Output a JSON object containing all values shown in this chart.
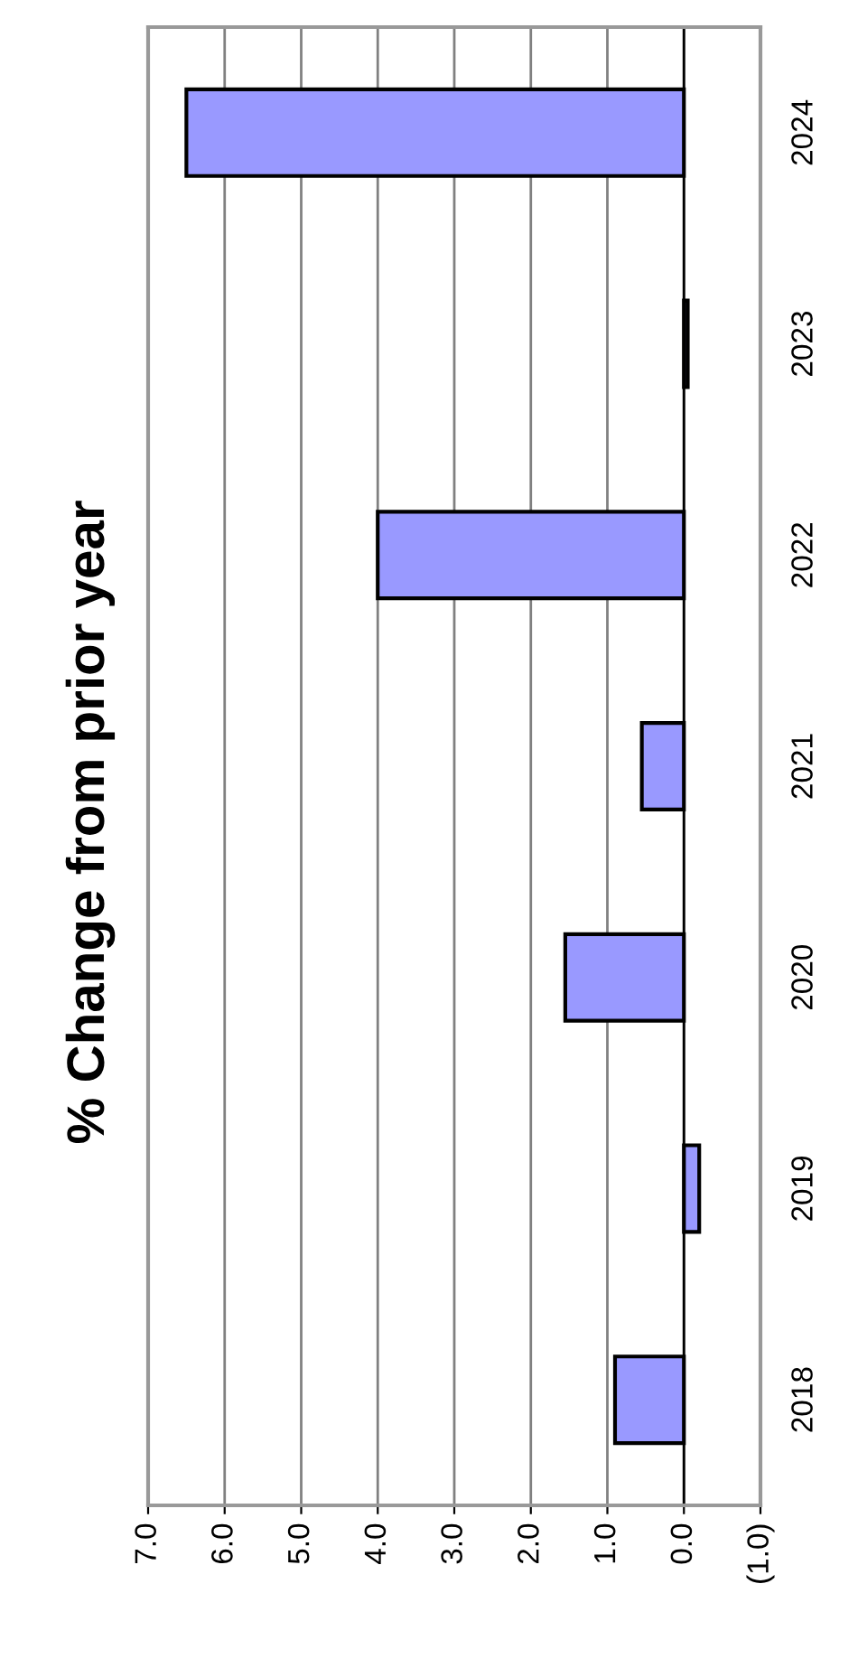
{
  "chart_data": {
    "type": "bar",
    "orientation": "horizontal",
    "title": "% Change from prior year",
    "categories": [
      "2024",
      "2023",
      "2022",
      "2021",
      "2020",
      "2019",
      "2018"
    ],
    "values": [
      6.5,
      -0.05,
      4.0,
      0.55,
      1.55,
      -0.2,
      0.9
    ],
    "color": "#9999ff",
    "xlim": [
      7,
      -1
    ],
    "xticks": [
      {
        "value": 7,
        "label": "7.0"
      },
      {
        "value": 6,
        "label": "6.0"
      },
      {
        "value": 5,
        "label": "5.0"
      },
      {
        "value": 4,
        "label": "4.0"
      },
      {
        "value": 3,
        "label": "3.0"
      },
      {
        "value": 2,
        "label": "2.0"
      },
      {
        "value": 1,
        "label": "1.0"
      },
      {
        "value": 0,
        "label": "0.0"
      },
      {
        "value": -1,
        "label": "(1.0)"
      }
    ],
    "grid": "x"
  }
}
